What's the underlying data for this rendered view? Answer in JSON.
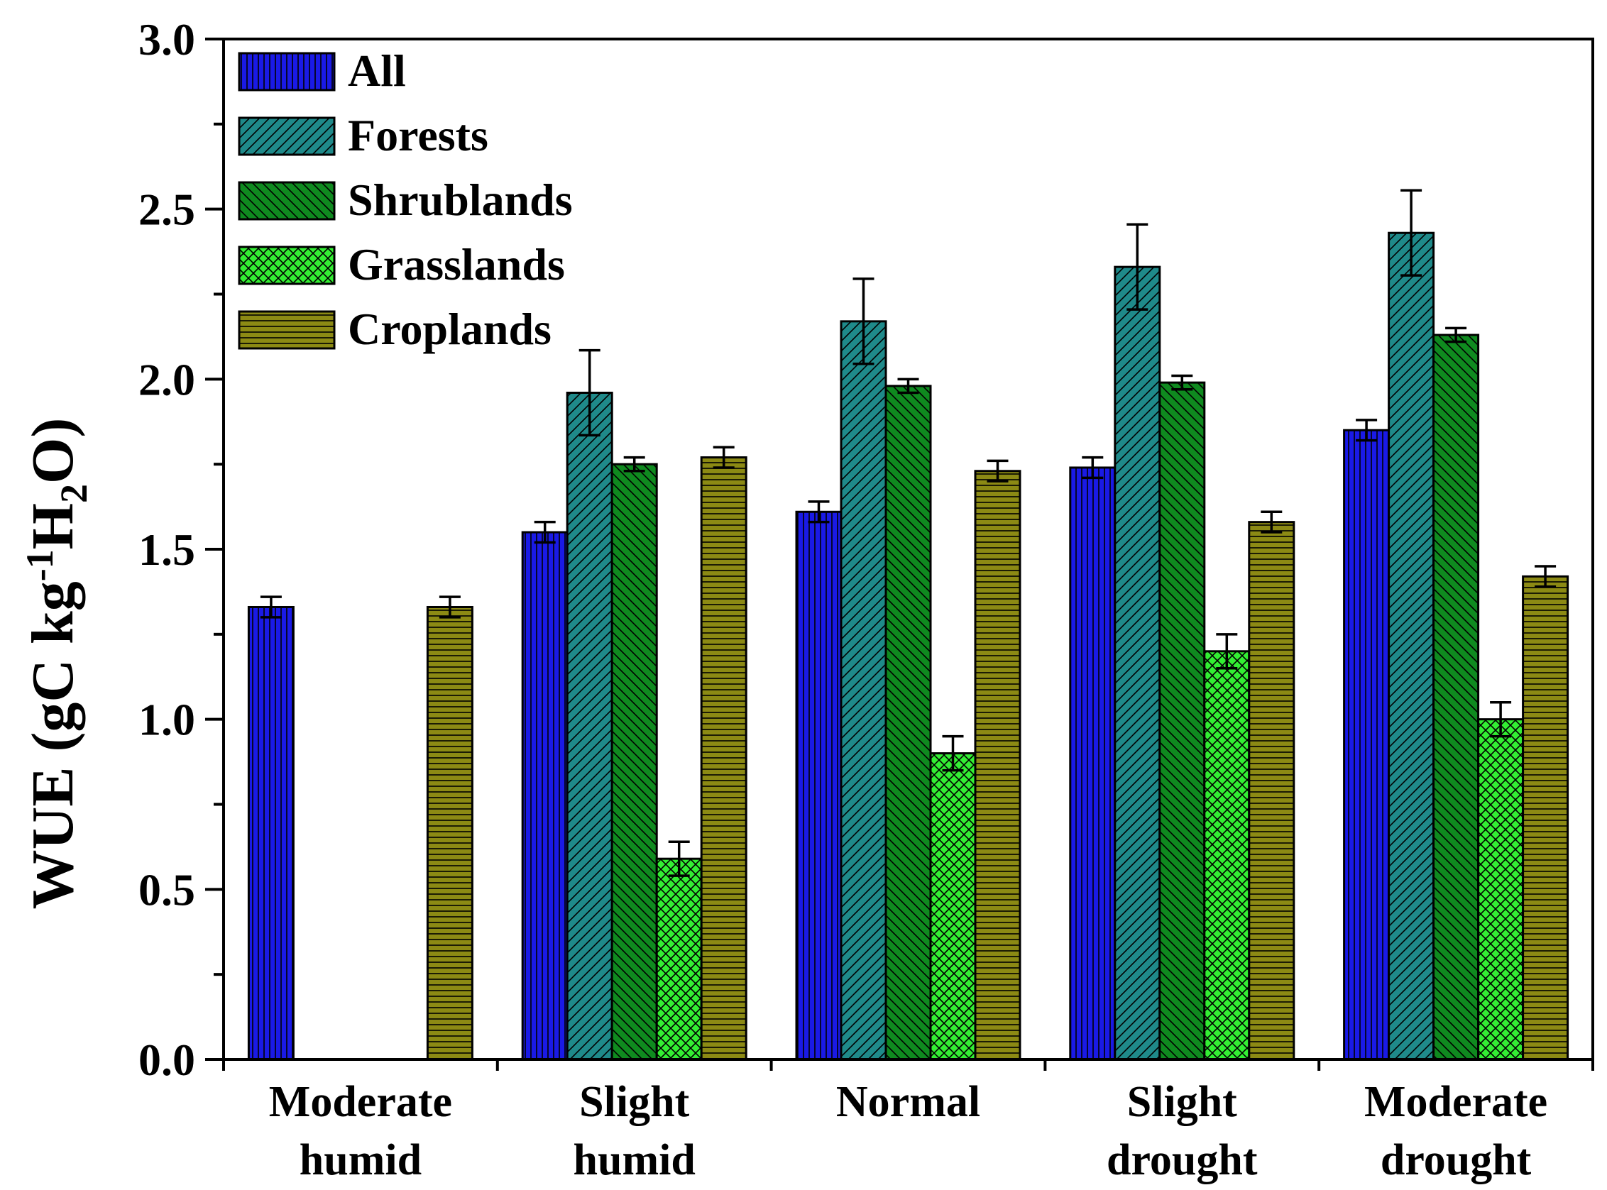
{
  "chart_data": {
    "type": "bar",
    "title": "",
    "xlabel": "",
    "ylabel": {
      "prefix": "WUE (gC kg",
      "sup": "-1",
      "mid": "H",
      "sub": "2",
      "suffix": "O)"
    },
    "ylim": [
      0,
      3.0
    ],
    "yticks": [
      "0.0",
      "0.5",
      "1.0",
      "1.5",
      "2.0",
      "2.5",
      "3.0"
    ],
    "categories": [
      [
        "Moderate",
        "humid"
      ],
      [
        "Slight",
        "humid"
      ],
      [
        "Normal"
      ],
      [
        "Slight",
        "drought"
      ],
      [
        "Moderate",
        "drought"
      ]
    ],
    "series": [
      {
        "name": "All",
        "color": "#1a1ae6",
        "pattern": "vertical",
        "values": [
          1.33,
          1.55,
          1.61,
          1.74,
          1.85
        ],
        "errors": [
          0.03,
          0.03,
          0.03,
          0.03,
          0.03
        ]
      },
      {
        "name": "Forests",
        "color": "#1f8a8a",
        "pattern": "diag-right",
        "values": [
          null,
          1.96,
          2.17,
          2.33,
          2.43
        ],
        "errors": [
          null,
          0.125,
          0.125,
          0.125,
          0.125
        ]
      },
      {
        "name": "Shrublands",
        "color": "#0f8a1f",
        "pattern": "diag-left",
        "values": [
          null,
          1.75,
          1.98,
          1.99,
          2.13
        ],
        "errors": [
          null,
          0.02,
          0.02,
          0.02,
          0.02
        ]
      },
      {
        "name": "Grasslands",
        "color": "#33ee33",
        "pattern": "cross",
        "values": [
          null,
          0.59,
          0.9,
          1.2,
          1.0
        ],
        "errors": [
          null,
          0.05,
          0.05,
          0.05,
          0.05
        ]
      },
      {
        "name": "Croplands",
        "color": "#8c8a14",
        "pattern": "horizontal",
        "values": [
          1.33,
          1.77,
          1.73,
          1.58,
          1.42
        ],
        "errors": [
          0.03,
          0.03,
          0.03,
          0.03,
          0.03
        ]
      }
    ],
    "legend_position": "top-left"
  }
}
